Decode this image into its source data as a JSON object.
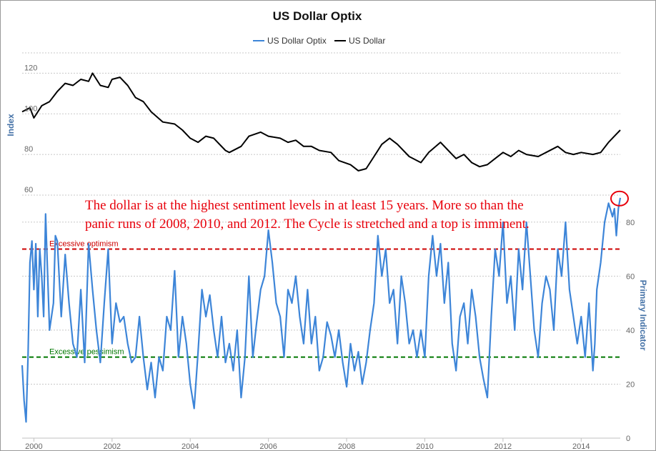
{
  "chart_data": {
    "type": "line",
    "title": "US Dollar Optix",
    "legend": {
      "placement": "top-center",
      "items": [
        {
          "name": "US Dollar Optix",
          "color": "#3d85d8"
        },
        {
          "name": "US Dollar",
          "color": "#000000"
        }
      ]
    },
    "x_axis": {
      "tick_labels": [
        "2000",
        "2002",
        "2004",
        "2006",
        "2008",
        "2010",
        "2012",
        "2014"
      ],
      "range": [
        1999.7,
        2015.0
      ]
    },
    "left_axis": {
      "label": "Index",
      "tick_labels": [
        "60",
        "80",
        "100",
        "120"
      ],
      "range": [
        60,
        130
      ]
    },
    "right_axis": {
      "label": "Primary Indicator",
      "tick_labels": [
        "0",
        "20",
        "40",
        "60",
        "80"
      ],
      "range": [
        0,
        90
      ]
    },
    "bands": [
      {
        "label": "Excessive optimism",
        "value": 70,
        "color": "#cc0000",
        "style": "dashed"
      },
      {
        "label": "Excessive pessimism",
        "value": 30,
        "color": "#007700",
        "style": "dashed"
      }
    ],
    "annotation": {
      "lines": [
        "The dollar is at the highest sentiment levels in at least 15 years.  More so than the",
        "panic runs of 2008, 2010, and 2012.  The Cycle is stretched and a top is imminent."
      ],
      "color": "#e8000b",
      "marker": "circle around latest Optix reading"
    },
    "grid": true,
    "series": [
      {
        "name": "US Dollar",
        "axis": "left",
        "color": "#000000",
        "points": [
          [
            1999.7,
            101
          ],
          [
            1999.9,
            103
          ],
          [
            2000.0,
            98
          ],
          [
            2000.2,
            104
          ],
          [
            2000.4,
            106
          ],
          [
            2000.6,
            111
          ],
          [
            2000.8,
            115
          ],
          [
            2001.0,
            114
          ],
          [
            2001.2,
            117
          ],
          [
            2001.4,
            116
          ],
          [
            2001.5,
            120
          ],
          [
            2001.7,
            114
          ],
          [
            2001.9,
            113
          ],
          [
            2002.0,
            117
          ],
          [
            2002.2,
            118
          ],
          [
            2002.4,
            114
          ],
          [
            2002.6,
            108
          ],
          [
            2002.8,
            106
          ],
          [
            2003.0,
            101
          ],
          [
            2003.3,
            96
          ],
          [
            2003.6,
            95
          ],
          [
            2003.8,
            92
          ],
          [
            2004.0,
            88
          ],
          [
            2004.2,
            86
          ],
          [
            2004.4,
            89
          ],
          [
            2004.6,
            88
          ],
          [
            2004.9,
            82
          ],
          [
            2005.0,
            81
          ],
          [
            2005.3,
            84
          ],
          [
            2005.5,
            89
          ],
          [
            2005.8,
            91
          ],
          [
            2006.0,
            89
          ],
          [
            2006.3,
            88
          ],
          [
            2006.5,
            86
          ],
          [
            2006.7,
            87
          ],
          [
            2006.9,
            84
          ],
          [
            2007.1,
            84
          ],
          [
            2007.3,
            82
          ],
          [
            2007.6,
            81
          ],
          [
            2007.8,
            77
          ],
          [
            2008.1,
            75
          ],
          [
            2008.3,
            72
          ],
          [
            2008.5,
            73
          ],
          [
            2008.7,
            79
          ],
          [
            2008.9,
            85
          ],
          [
            2009.1,
            88
          ],
          [
            2009.3,
            85
          ],
          [
            2009.6,
            79
          ],
          [
            2009.9,
            76
          ],
          [
            2010.1,
            81
          ],
          [
            2010.4,
            86
          ],
          [
            2010.6,
            82
          ],
          [
            2010.8,
            78
          ],
          [
            2011.0,
            80
          ],
          [
            2011.2,
            76
          ],
          [
            2011.4,
            74
          ],
          [
            2011.6,
            75
          ],
          [
            2011.8,
            78
          ],
          [
            2012.0,
            81
          ],
          [
            2012.2,
            79
          ],
          [
            2012.4,
            82
          ],
          [
            2012.6,
            80
          ],
          [
            2012.9,
            79
          ],
          [
            2013.1,
            81
          ],
          [
            2013.4,
            84
          ],
          [
            2013.6,
            81
          ],
          [
            2013.8,
            80
          ],
          [
            2014.0,
            81
          ],
          [
            2014.3,
            80
          ],
          [
            2014.5,
            81
          ],
          [
            2014.7,
            86
          ],
          [
            2014.9,
            90
          ],
          [
            2015.0,
            92
          ]
        ]
      },
      {
        "name": "US Dollar Optix",
        "axis": "right",
        "color": "#3d85d8",
        "points": [
          [
            1999.7,
            27
          ],
          [
            1999.75,
            14
          ],
          [
            1999.8,
            6
          ],
          [
            1999.85,
            30
          ],
          [
            1999.9,
            65
          ],
          [
            1999.95,
            73
          ],
          [
            2000.0,
            55
          ],
          [
            2000.05,
            72
          ],
          [
            2000.1,
            45
          ],
          [
            2000.15,
            70
          ],
          [
            2000.2,
            60
          ],
          [
            2000.25,
            45
          ],
          [
            2000.3,
            83
          ],
          [
            2000.4,
            40
          ],
          [
            2000.5,
            50
          ],
          [
            2000.55,
            75
          ],
          [
            2000.6,
            73
          ],
          [
            2000.7,
            45
          ],
          [
            2000.8,
            68
          ],
          [
            2000.9,
            50
          ],
          [
            2001.0,
            35
          ],
          [
            2001.1,
            30
          ],
          [
            2001.2,
            55
          ],
          [
            2001.3,
            28
          ],
          [
            2001.4,
            72
          ],
          [
            2001.5,
            55
          ],
          [
            2001.6,
            40
          ],
          [
            2001.7,
            28
          ],
          [
            2001.8,
            50
          ],
          [
            2001.9,
            70
          ],
          [
            2002.0,
            35
          ],
          [
            2002.1,
            50
          ],
          [
            2002.2,
            43
          ],
          [
            2002.3,
            45
          ],
          [
            2002.4,
            35
          ],
          [
            2002.5,
            28
          ],
          [
            2002.6,
            30
          ],
          [
            2002.7,
            45
          ],
          [
            2002.8,
            30
          ],
          [
            2002.9,
            18
          ],
          [
            2003.0,
            28
          ],
          [
            2003.1,
            15
          ],
          [
            2003.2,
            30
          ],
          [
            2003.3,
            25
          ],
          [
            2003.4,
            45
          ],
          [
            2003.5,
            40
          ],
          [
            2003.6,
            62
          ],
          [
            2003.7,
            30
          ],
          [
            2003.8,
            45
          ],
          [
            2003.9,
            35
          ],
          [
            2004.0,
            20
          ],
          [
            2004.1,
            11
          ],
          [
            2004.2,
            32
          ],
          [
            2004.3,
            55
          ],
          [
            2004.4,
            45
          ],
          [
            2004.5,
            53
          ],
          [
            2004.6,
            40
          ],
          [
            2004.7,
            30
          ],
          [
            2004.8,
            45
          ],
          [
            2004.9,
            28
          ],
          [
            2005.0,
            35
          ],
          [
            2005.1,
            25
          ],
          [
            2005.2,
            40
          ],
          [
            2005.3,
            15
          ],
          [
            2005.4,
            30
          ],
          [
            2005.5,
            60
          ],
          [
            2005.6,
            30
          ],
          [
            2005.7,
            43
          ],
          [
            2005.8,
            55
          ],
          [
            2005.9,
            60
          ],
          [
            2006.0,
            77
          ],
          [
            2006.1,
            65
          ],
          [
            2006.2,
            50
          ],
          [
            2006.3,
            45
          ],
          [
            2006.4,
            30
          ],
          [
            2006.5,
            55
          ],
          [
            2006.6,
            50
          ],
          [
            2006.7,
            60
          ],
          [
            2006.8,
            45
          ],
          [
            2006.9,
            35
          ],
          [
            2007.0,
            55
          ],
          [
            2007.1,
            35
          ],
          [
            2007.2,
            45
          ],
          [
            2007.3,
            25
          ],
          [
            2007.4,
            30
          ],
          [
            2007.5,
            43
          ],
          [
            2007.6,
            38
          ],
          [
            2007.7,
            30
          ],
          [
            2007.8,
            40
          ],
          [
            2007.9,
            28
          ],
          [
            2008.0,
            19
          ],
          [
            2008.1,
            35
          ],
          [
            2008.2,
            25
          ],
          [
            2008.3,
            32
          ],
          [
            2008.4,
            20
          ],
          [
            2008.5,
            28
          ],
          [
            2008.6,
            40
          ],
          [
            2008.7,
            50
          ],
          [
            2008.8,
            75
          ],
          [
            2008.9,
            60
          ],
          [
            2009.0,
            70
          ],
          [
            2009.1,
            50
          ],
          [
            2009.2,
            55
          ],
          [
            2009.3,
            35
          ],
          [
            2009.4,
            60
          ],
          [
            2009.5,
            50
          ],
          [
            2009.6,
            35
          ],
          [
            2009.7,
            40
          ],
          [
            2009.8,
            30
          ],
          [
            2009.9,
            40
          ],
          [
            2010.0,
            30
          ],
          [
            2010.1,
            60
          ],
          [
            2010.2,
            75
          ],
          [
            2010.3,
            60
          ],
          [
            2010.4,
            72
          ],
          [
            2010.5,
            50
          ],
          [
            2010.6,
            65
          ],
          [
            2010.7,
            35
          ],
          [
            2010.8,
            25
          ],
          [
            2010.9,
            45
          ],
          [
            2011.0,
            50
          ],
          [
            2011.1,
            35
          ],
          [
            2011.2,
            55
          ],
          [
            2011.3,
            45
          ],
          [
            2011.4,
            30
          ],
          [
            2011.5,
            22
          ],
          [
            2011.6,
            15
          ],
          [
            2011.7,
            45
          ],
          [
            2011.8,
            70
          ],
          [
            2011.9,
            60
          ],
          [
            2012.0,
            80
          ],
          [
            2012.1,
            50
          ],
          [
            2012.2,
            60
          ],
          [
            2012.3,
            40
          ],
          [
            2012.4,
            70
          ],
          [
            2012.5,
            55
          ],
          [
            2012.6,
            80
          ],
          [
            2012.7,
            60
          ],
          [
            2012.8,
            40
          ],
          [
            2012.9,
            30
          ],
          [
            2013.0,
            50
          ],
          [
            2013.1,
            60
          ],
          [
            2013.2,
            55
          ],
          [
            2013.3,
            40
          ],
          [
            2013.4,
            70
          ],
          [
            2013.5,
            60
          ],
          [
            2013.6,
            80
          ],
          [
            2013.7,
            55
          ],
          [
            2013.8,
            45
          ],
          [
            2013.9,
            35
          ],
          [
            2014.0,
            45
          ],
          [
            2014.1,
            30
          ],
          [
            2014.2,
            50
          ],
          [
            2014.3,
            25
          ],
          [
            2014.35,
            35
          ],
          [
            2014.4,
            55
          ],
          [
            2014.5,
            65
          ],
          [
            2014.6,
            80
          ],
          [
            2014.7,
            87
          ],
          [
            2014.8,
            82
          ],
          [
            2014.85,
            85
          ],
          [
            2014.9,
            75
          ],
          [
            2014.95,
            85
          ],
          [
            2015.0,
            89
          ]
        ]
      }
    ]
  }
}
